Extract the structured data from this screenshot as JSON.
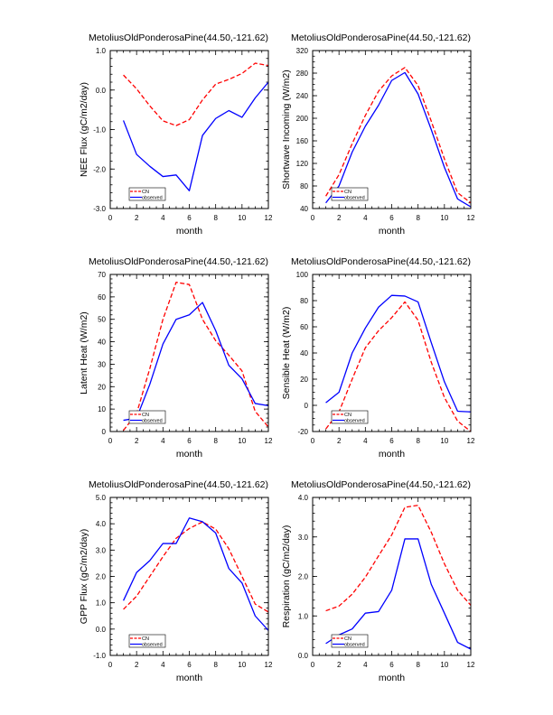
{
  "chart_data": [
    {
      "type": "line",
      "title": "MetoliusOldPonderosaPine(44.50,-121.62)",
      "xlabel": "month",
      "ylabel": "NEE Flux (gC/m2/day)",
      "xlim": [
        0,
        12
      ],
      "ylim": [
        -3.0,
        1.0
      ],
      "xticks": [
        0,
        2,
        4,
        6,
        8,
        10,
        12
      ],
      "xtick_labels": [
        "0",
        "2",
        "4",
        "6",
        "8",
        "10",
        "12"
      ],
      "yticks": [
        -3.0,
        -2.0,
        -1.0,
        0.0,
        1.0
      ],
      "ytick_labels": [
        "-3.0",
        "-2.0",
        "-1.0",
        "0.0",
        "1.0"
      ],
      "yminor": 0.2,
      "x": [
        1,
        2,
        3,
        4,
        5,
        6,
        7,
        8,
        9,
        10,
        11,
        12
      ],
      "series": [
        {
          "name": "CN",
          "color": "#ff0000",
          "dashed": true,
          "values": [
            0.38,
            0.03,
            -0.4,
            -0.78,
            -0.9,
            -0.75,
            -0.25,
            0.15,
            0.27,
            0.42,
            0.68,
            0.62
          ]
        },
        {
          "name": "observed",
          "color": "#0000ff",
          "dashed": false,
          "values": [
            -0.77,
            -1.63,
            -1.93,
            -2.19,
            -2.15,
            -2.55,
            -1.15,
            -0.72,
            -0.52,
            -0.69,
            -0.2,
            0.2
          ]
        }
      ],
      "legend": "bottom-left"
    },
    {
      "type": "line",
      "title": "MetoliusOldPonderosaPine(44.50,-121.62)",
      "xlabel": "month",
      "ylabel": "Shortwave Incoming (W/m2)",
      "xlim": [
        0,
        12
      ],
      "ylim": [
        40,
        320
      ],
      "xticks": [
        0,
        2,
        4,
        6,
        8,
        10,
        12
      ],
      "xtick_labels": [
        "0",
        "2",
        "4",
        "6",
        "8",
        "10",
        "12"
      ],
      "yticks": [
        40,
        80,
        120,
        160,
        200,
        240,
        280,
        320
      ],
      "ytick_labels": [
        "40",
        "80",
        "120",
        "160",
        "200",
        "240",
        "280",
        "320"
      ],
      "yminor": 10,
      "x": [
        1,
        2,
        3,
        4,
        5,
        6,
        7,
        8,
        9,
        10,
        11,
        12
      ],
      "series": [
        {
          "name": "CN",
          "color": "#ff0000",
          "dashed": true,
          "values": [
            62,
            100,
            155,
            205,
            248,
            275,
            290,
            258,
            195,
            128,
            68,
            50
          ]
        },
        {
          "name": "observed",
          "color": "#0000ff",
          "dashed": false,
          "values": [
            50,
            80,
            140,
            186,
            223,
            267,
            281,
            243,
            180,
            113,
            57,
            43
          ]
        }
      ],
      "legend": "bottom-left"
    },
    {
      "type": "line",
      "title": "MetoliusOldPonderosaPine(44.50,-121.62)",
      "xlabel": "month",
      "ylabel": "Latent Heat (W/m2)",
      "xlim": [
        0,
        12
      ],
      "ylim": [
        0,
        70
      ],
      "xticks": [
        0,
        2,
        4,
        6,
        8,
        10,
        12
      ],
      "xtick_labels": [
        "0",
        "2",
        "4",
        "6",
        "8",
        "10",
        "12"
      ],
      "yticks": [
        0,
        10,
        20,
        30,
        40,
        50,
        60,
        70
      ],
      "ytick_labels": [
        "0",
        "10",
        "20",
        "30",
        "40",
        "50",
        "60",
        "70"
      ],
      "yminor": 2,
      "x": [
        1,
        2,
        3,
        4,
        5,
        6,
        7,
        8,
        9,
        10,
        11,
        12
      ],
      "series": [
        {
          "name": "CN",
          "color": "#ff0000",
          "dashed": true,
          "values": [
            0.5,
            8,
            28,
            50,
            66.5,
            65.5,
            50,
            40.5,
            34,
            27,
            9,
            2
          ]
        },
        {
          "name": "observed",
          "color": "#0000ff",
          "dashed": false,
          "values": [
            5,
            6,
            21,
            39,
            50,
            52,
            57.5,
            45,
            29.5,
            23.5,
            12.5,
            11.5
          ]
        }
      ],
      "legend": "bottom-left"
    },
    {
      "type": "line",
      "title": "MetoliusOldPonderosaPine(44.50,-121.62)",
      "xlabel": "month",
      "ylabel": "Sensible Heat (W/m2)",
      "xlim": [
        0,
        12
      ],
      "ylim": [
        -20,
        100
      ],
      "xticks": [
        0,
        2,
        4,
        6,
        8,
        10,
        12
      ],
      "xtick_labels": [
        "0",
        "2",
        "4",
        "6",
        "8",
        "10",
        "12"
      ],
      "yticks": [
        -20,
        0,
        20,
        40,
        60,
        80,
        100
      ],
      "ytick_labels": [
        "-20",
        "0",
        "20",
        "40",
        "60",
        "80",
        "100"
      ],
      "yminor": 5,
      "x": [
        1,
        2,
        3,
        4,
        5,
        6,
        7,
        8,
        9,
        10,
        11,
        12
      ],
      "series": [
        {
          "name": "CN",
          "color": "#ff0000",
          "dashed": true,
          "values": [
            -18,
            -5,
            20,
            44,
            57,
            67,
            79,
            65,
            33,
            6,
            -12,
            -20
          ]
        },
        {
          "name": "observed",
          "color": "#0000ff",
          "dashed": false,
          "values": [
            2,
            10,
            40,
            59,
            75,
            84,
            83.5,
            79,
            48,
            18,
            -4.5,
            -5
          ]
        }
      ],
      "legend": "bottom-left"
    },
    {
      "type": "line",
      "title": "MetoliusOldPonderosaPine(44.50,-121.62)",
      "xlabel": "month",
      "ylabel": "GPP Flux (gC/m2/day)",
      "xlim": [
        0,
        12
      ],
      "ylim": [
        -1.0,
        5.0
      ],
      "xticks": [
        0,
        2,
        4,
        6,
        8,
        10,
        12
      ],
      "xtick_labels": [
        "0",
        "2",
        "4",
        "6",
        "8",
        "10",
        "12"
      ],
      "yticks": [
        -1.0,
        0.0,
        1.0,
        2.0,
        3.0,
        4.0,
        5.0
      ],
      "ytick_labels": [
        "-1.0",
        "0.0",
        "1.0",
        "2.0",
        "3.0",
        "4.0",
        "5.0"
      ],
      "yminor": 0.2,
      "x": [
        1,
        2,
        3,
        4,
        5,
        6,
        7,
        8,
        9,
        10,
        11,
        12
      ],
      "series": [
        {
          "name": "CN",
          "color": "#ff0000",
          "dashed": true,
          "values": [
            0.75,
            1.25,
            2.0,
            2.75,
            3.45,
            3.82,
            4.07,
            3.8,
            3.05,
            2.0,
            0.95,
            0.65
          ]
        },
        {
          "name": "observed",
          "color": "#0000ff",
          "dashed": false,
          "values": [
            1.08,
            2.15,
            2.6,
            3.25,
            3.25,
            4.22,
            4.08,
            3.65,
            2.3,
            1.75,
            0.5,
            -0.05
          ]
        }
      ],
      "legend": "bottom-left"
    },
    {
      "type": "line",
      "title": "MetoliusOldPonderosaPine(44.50,-121.62)",
      "xlabel": "month",
      "ylabel": "Respiration (gC/m2/day)",
      "xlim": [
        0,
        12
      ],
      "ylim": [
        0.0,
        4.0
      ],
      "xticks": [
        0,
        2,
        4,
        6,
        8,
        10,
        12
      ],
      "xtick_labels": [
        "0",
        "2",
        "4",
        "6",
        "8",
        "10",
        "12"
      ],
      "yticks": [
        0.0,
        1.0,
        2.0,
        3.0,
        4.0
      ],
      "ytick_labels": [
        "0.0",
        "1.0",
        "2.0",
        "3.0",
        "4.0"
      ],
      "yminor": 0.2,
      "x": [
        1,
        2,
        3,
        4,
        5,
        6,
        7,
        8,
        9,
        10,
        11,
        12
      ],
      "series": [
        {
          "name": "CN",
          "color": "#ff0000",
          "dashed": true,
          "values": [
            1.13,
            1.25,
            1.55,
            1.98,
            2.52,
            3.05,
            3.75,
            3.8,
            3.12,
            2.32,
            1.65,
            1.27
          ]
        },
        {
          "name": "observed",
          "color": "#0000ff",
          "dashed": false,
          "values": [
            0.3,
            0.52,
            0.67,
            1.07,
            1.11,
            1.65,
            2.95,
            2.95,
            1.8,
            1.07,
            0.33,
            0.16
          ]
        }
      ],
      "legend": "bottom-left"
    }
  ]
}
